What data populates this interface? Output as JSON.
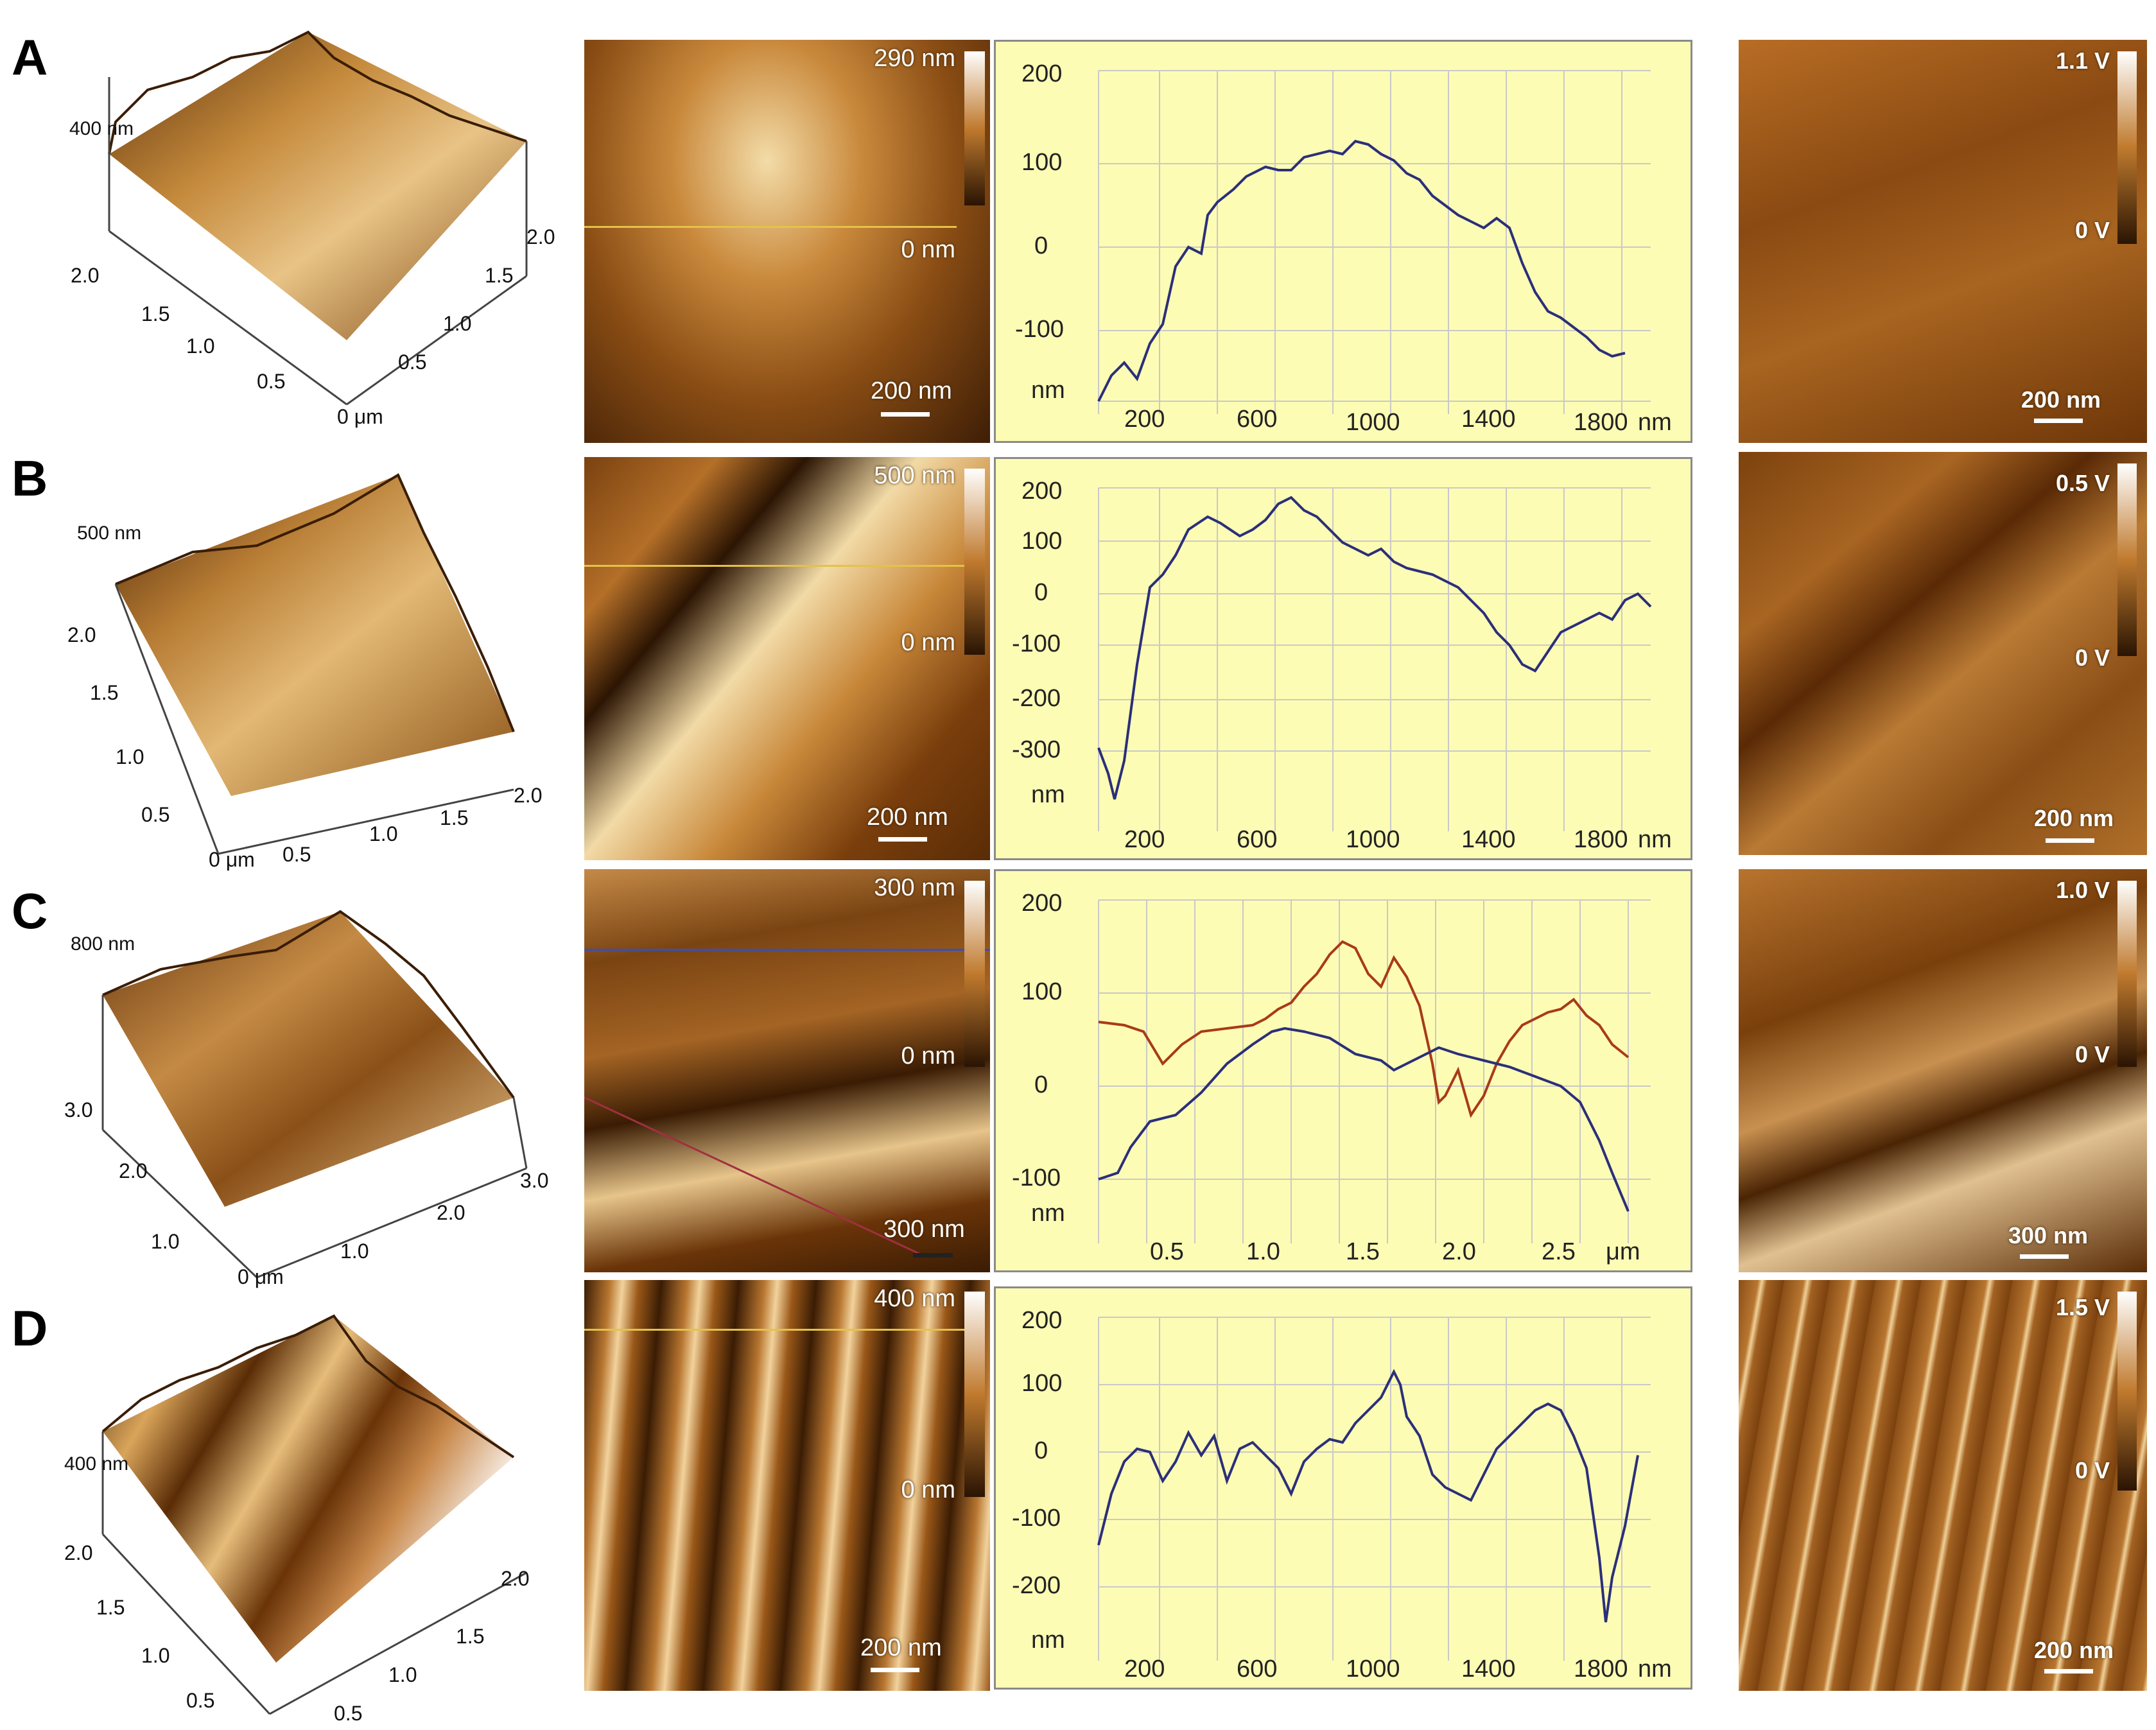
{
  "colors": {
    "afm_dark": "#3a1d05",
    "afm_mid": "#a6601a",
    "afm_light": "#f1d7a0",
    "profile_bg": "#fdfcb4",
    "profile_grid": "#c9c9c9",
    "profile_line_blue": "#2b2f7a",
    "profile_line_red": "#a83a1a",
    "marker_line_yellow": "#e3c24a",
    "marker_line_blue": "#3050c8",
    "marker_line_red": "#a03040"
  },
  "rows": [
    {
      "letter": "A",
      "surface": {
        "z_label": "400 nm",
        "left_ticks": [
          "2.0",
          "1.5",
          "1.0",
          "0.5"
        ],
        "right_ticks": [
          "2.0",
          "1.5",
          "1.0",
          "0.5"
        ],
        "origin": "0 μm"
      },
      "height_image": {
        "max": "290 nm",
        "zero": "0 nm",
        "scale": "200 nm"
      },
      "profile": {
        "y_ticks": [
          "200",
          "100",
          "0",
          "-100"
        ],
        "y_unit": "nm",
        "x_ticks": [
          "200",
          "600",
          "1000",
          "1400",
          "1800"
        ],
        "x_unit": "nm"
      },
      "amplitude": {
        "max": "1.1 V",
        "zero": "0 V",
        "scale": "200 nm"
      }
    },
    {
      "letter": "B",
      "surface": {
        "z_label": "500 nm",
        "left_ticks": [
          "2.0",
          "1.5",
          "1.0",
          "0.5"
        ],
        "right_ticks": [
          "2.0",
          "1.5",
          "1.0",
          "0.5"
        ],
        "origin": "0 μm"
      },
      "height_image": {
        "max": "500 nm",
        "zero": "0 nm",
        "scale": "200 nm"
      },
      "profile": {
        "y_ticks": [
          "200",
          "100",
          "0",
          "-100",
          "-200",
          "-300"
        ],
        "y_unit": "nm",
        "x_ticks": [
          "200",
          "600",
          "1000",
          "1400",
          "1800"
        ],
        "x_unit": "nm"
      },
      "amplitude": {
        "max": "0.5 V",
        "zero": "0 V",
        "scale": "200 nm"
      }
    },
    {
      "letter": "C",
      "surface": {
        "z_label": "800 nm",
        "left_ticks": [
          "3.0",
          "2.0",
          "1.0"
        ],
        "right_ticks": [
          "3.0",
          "2.0",
          "1.0"
        ],
        "origin": "0 μm"
      },
      "height_image": {
        "max": "300 nm",
        "zero": "0 nm",
        "scale": "300 nm"
      },
      "profile": {
        "y_ticks": [
          "200",
          "100",
          "0",
          "-100"
        ],
        "y_unit": "nm",
        "x_ticks": [
          "0.5",
          "1.0",
          "1.5",
          "2.0",
          "2.5"
        ],
        "x_unit": "μm"
      },
      "amplitude": {
        "max": "1.0 V",
        "zero": "0 V",
        "scale": "300 nm"
      }
    },
    {
      "letter": "D",
      "surface": {
        "z_label": "400 nm",
        "left_ticks": [
          "2.0",
          "1.5",
          "1.0",
          "0.5"
        ],
        "right_ticks": [
          "2.0",
          "1.5",
          "1.0",
          "0.5"
        ],
        "origin": ""
      },
      "height_image": {
        "max": "400 nm",
        "zero": "0 nm",
        "scale": "200 nm"
      },
      "profile": {
        "y_ticks": [
          "200",
          "100",
          "0",
          "-100",
          "-200"
        ],
        "y_unit": "nm",
        "x_ticks": [
          "200",
          "600",
          "1000",
          "1400",
          "1800"
        ],
        "x_unit": "nm"
      },
      "amplitude": {
        "max": "1.5 V",
        "zero": "0 V",
        "scale": "200 nm"
      }
    }
  ]
}
